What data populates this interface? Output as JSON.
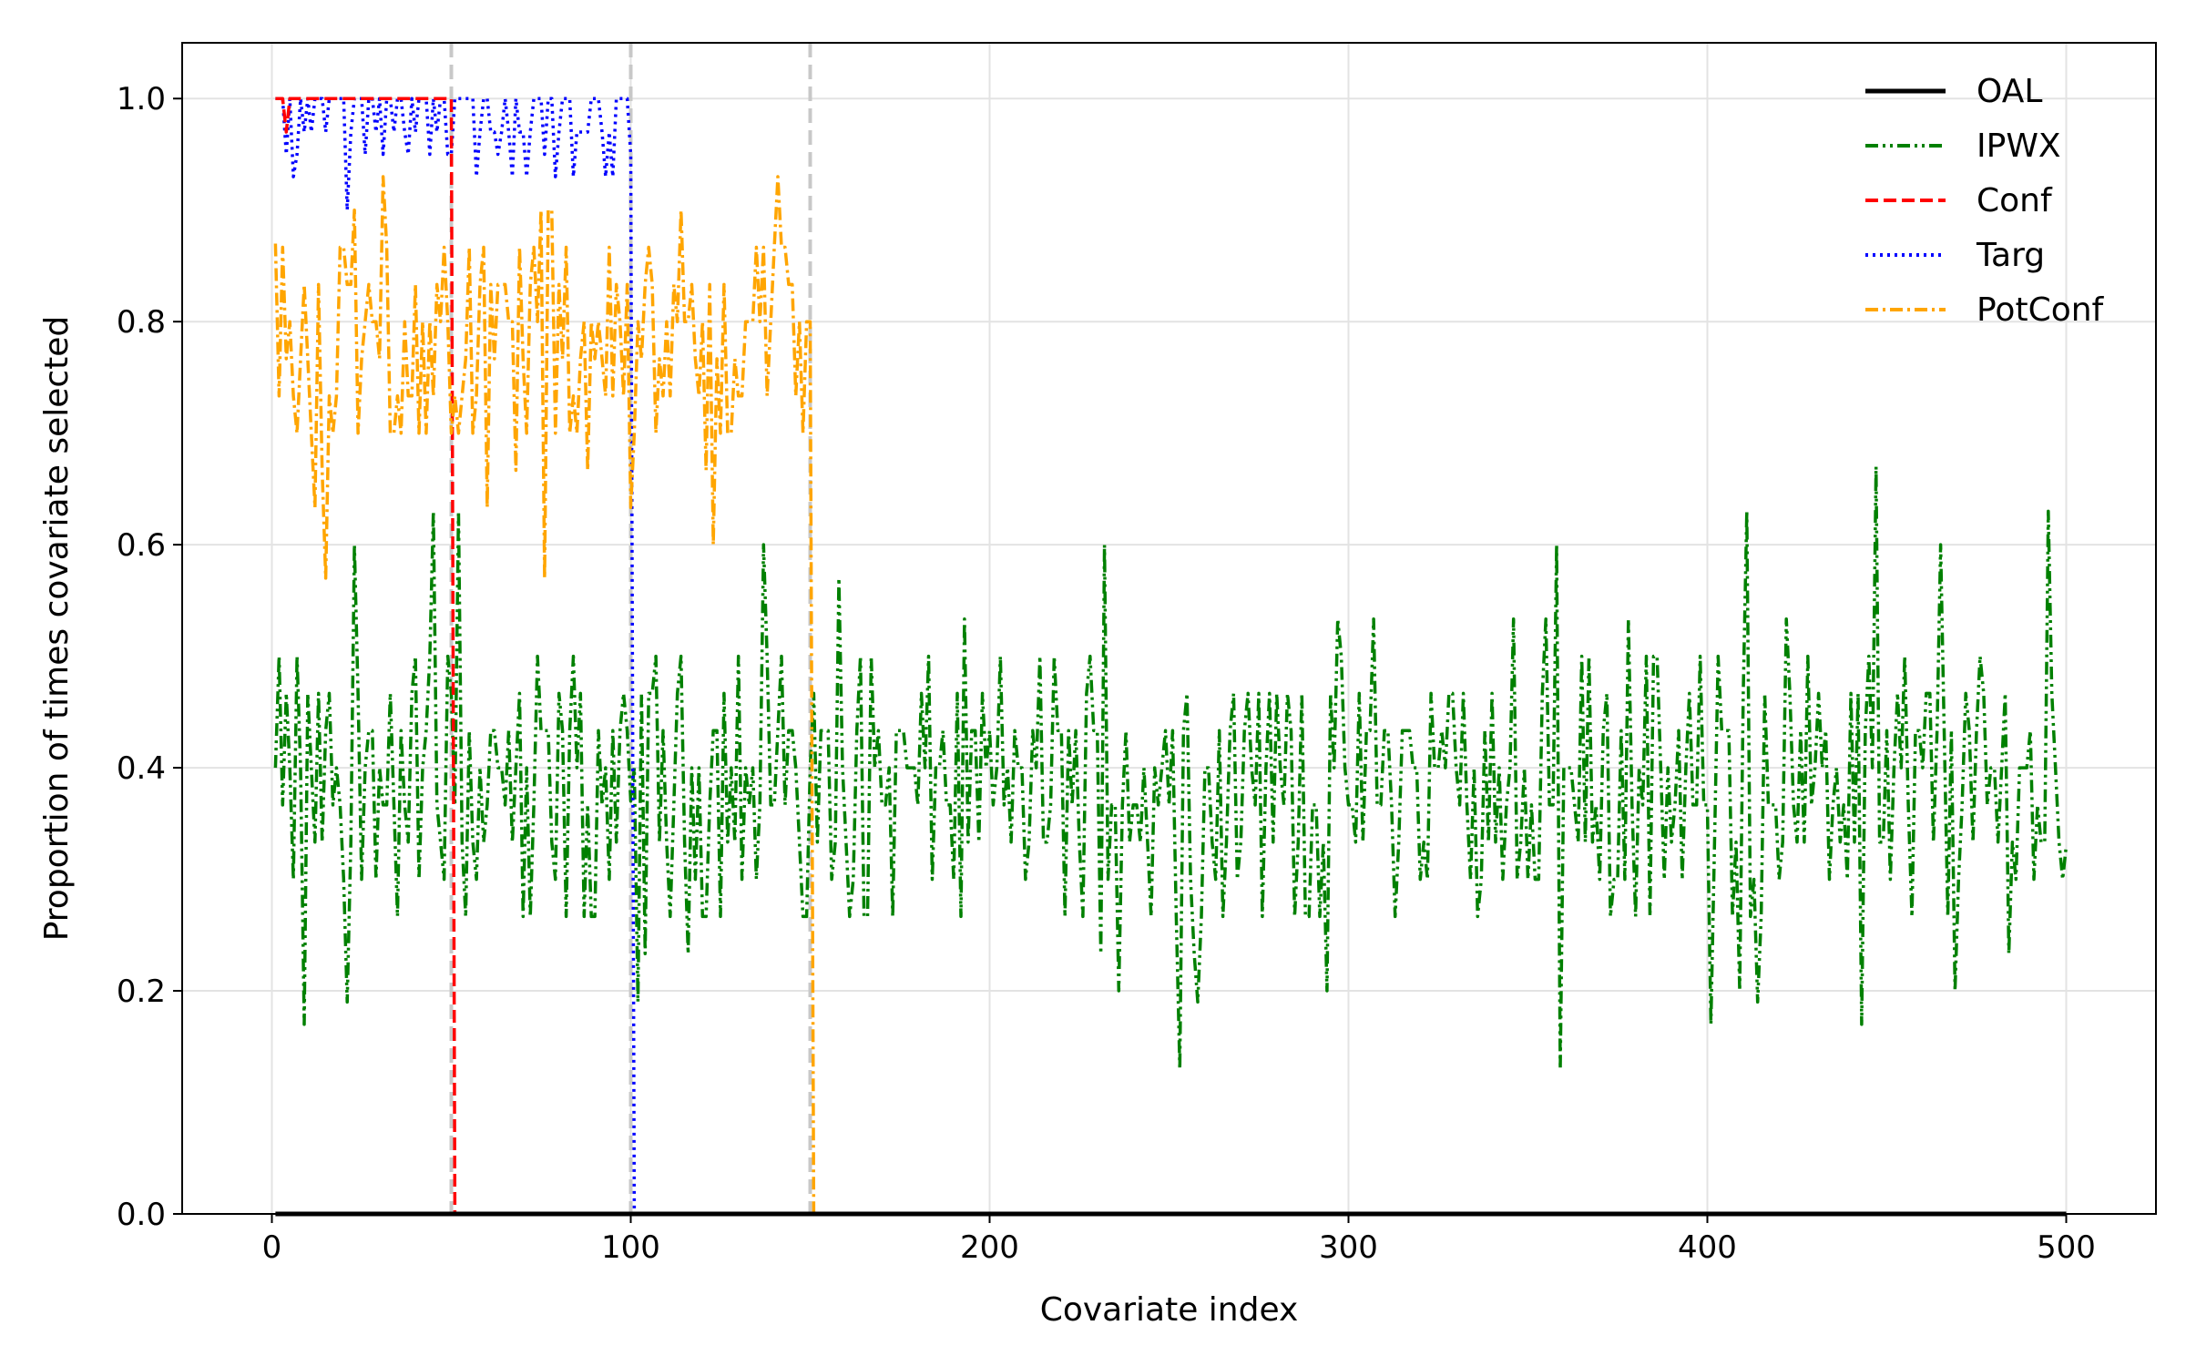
{
  "chart_data": {
    "type": "line",
    "title": "",
    "xlabel": "Covariate index",
    "ylabel": "Proportion of times covariate selected",
    "xlim": [
      -25,
      525
    ],
    "ylim": [
      0.0,
      1.05
    ],
    "xticks": [
      "0",
      "100",
      "200",
      "300",
      "400",
      "500"
    ],
    "yticks": [
      "0.0",
      "0.2",
      "0.4",
      "0.6",
      "0.8",
      "1.0"
    ],
    "grid": true,
    "legend_position": "top-right",
    "vertical_reference_lines": [
      50,
      100,
      150
    ],
    "x_range": [
      1,
      500
    ],
    "series": [
      {
        "name": "OAL",
        "color": "#000000",
        "style": "solid",
        "description": "zero for all covariates",
        "segments": [
          {
            "from": 1,
            "to": 500,
            "value": 0.0
          }
        ]
      },
      {
        "name": "IPWX",
        "color": "#008000",
        "style": "dashdotdot",
        "description": "fluctuates roughly between 0.13 and 0.67 around 0.38 across all covariates",
        "key_points": [
          {
            "x": 1,
            "y": 0.4
          },
          {
            "x": 9,
            "y": 0.17
          },
          {
            "x": 23,
            "y": 0.6
          },
          {
            "x": 45,
            "y": 0.63
          },
          {
            "x": 100,
            "y": 0.37
          },
          {
            "x": 158,
            "y": 0.57
          },
          {
            "x": 232,
            "y": 0.6
          },
          {
            "x": 253,
            "y": 0.13
          },
          {
            "x": 358,
            "y": 0.6
          },
          {
            "x": 358.5,
            "y": 0.13
          },
          {
            "x": 401,
            "y": 0.17
          },
          {
            "x": 443,
            "y": 0.17
          },
          {
            "x": 447,
            "y": 0.67
          },
          {
            "x": 495,
            "y": 0.63
          },
          {
            "x": 500,
            "y": 0.33
          }
        ],
        "range": [
          0.13,
          0.67
        ]
      },
      {
        "name": "Conf",
        "color": "#ff0000",
        "style": "dashed",
        "description": "1.0 for covariates 1-50 (one dip to about 0.97), 0 afterwards",
        "segments": [
          {
            "from": 1,
            "to": 50,
            "value": 1.0
          },
          {
            "from": 51,
            "to": 500,
            "value": 0.0
          }
        ],
        "key_points": [
          {
            "x": 4,
            "y": 0.97
          }
        ]
      },
      {
        "name": "Targ",
        "color": "#0000ff",
        "style": "dotted",
        "description": "near 1.0 (dips to about 0.90) for covariates 1-100, 0 afterwards",
        "segments": [
          {
            "from": 1,
            "to": 100,
            "value": 1.0
          },
          {
            "from": 101,
            "to": 500,
            "value": 0.0
          }
        ],
        "key_points": [
          {
            "x": 21,
            "y": 0.9
          },
          {
            "x": 84,
            "y": 0.93
          }
        ],
        "range": [
          0.9,
          1.0
        ]
      },
      {
        "name": "PotConf",
        "color": "#ffa500",
        "style": "dashdot",
        "description": "fluctuates between about 0.57 and 0.93 for covariates 1-150, 0 afterwards",
        "segments": [
          {
            "from": 1,
            "to": 150,
            "value": "0.57-0.93"
          },
          {
            "from": 151,
            "to": 500,
            "value": 0.0
          }
        ],
        "key_points": [
          {
            "x": 1,
            "y": 0.87
          },
          {
            "x": 15,
            "y": 0.57
          },
          {
            "x": 31,
            "y": 0.93
          },
          {
            "x": 76,
            "y": 0.57
          },
          {
            "x": 123,
            "y": 0.6
          },
          {
            "x": 141,
            "y": 0.93
          },
          {
            "x": 150,
            "y": 0.8
          }
        ],
        "range": [
          0.57,
          0.93
        ]
      }
    ]
  }
}
